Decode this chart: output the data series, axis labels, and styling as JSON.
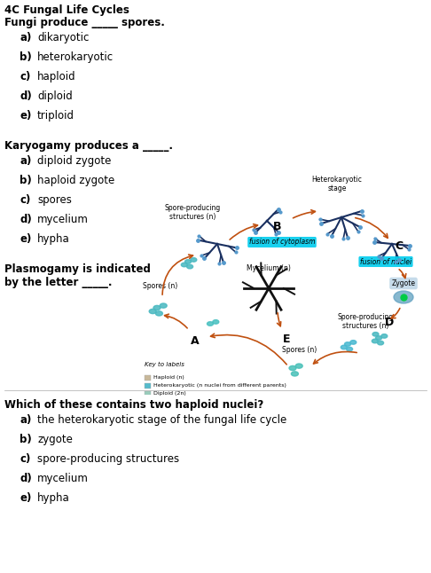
{
  "title": "4C Fungal Life Cycles",
  "q1_bold": "Fungi produce _____ spores.",
  "q1_options": [
    "a)\tdikaryotic",
    "b)\theterokaryotic",
    "c)\thaploid",
    "d)\tdiploid",
    "e)\ttriploid"
  ],
  "q2_bold": "Karyogamy produces a _____.",
  "q2_options": [
    "a)\tdiploid zygote",
    "b)\thaploid zygote",
    "c)\tspores",
    "d)\tmycelium",
    "e)\thypha"
  ],
  "q3_bold_1": "Plasmogamy is indicated",
  "q3_bold_2": "by the letter _____.",
  "q4_bold": "Which of these contains two haploid nuclei?",
  "q4_options": [
    "a)\tthe heterokaryotic stage of the fungal life cycle",
    "b)\tzygote",
    "c)\tspore-producing structures",
    "d)\tmycelium",
    "e)\thypha"
  ],
  "bg_color": "#ffffff"
}
